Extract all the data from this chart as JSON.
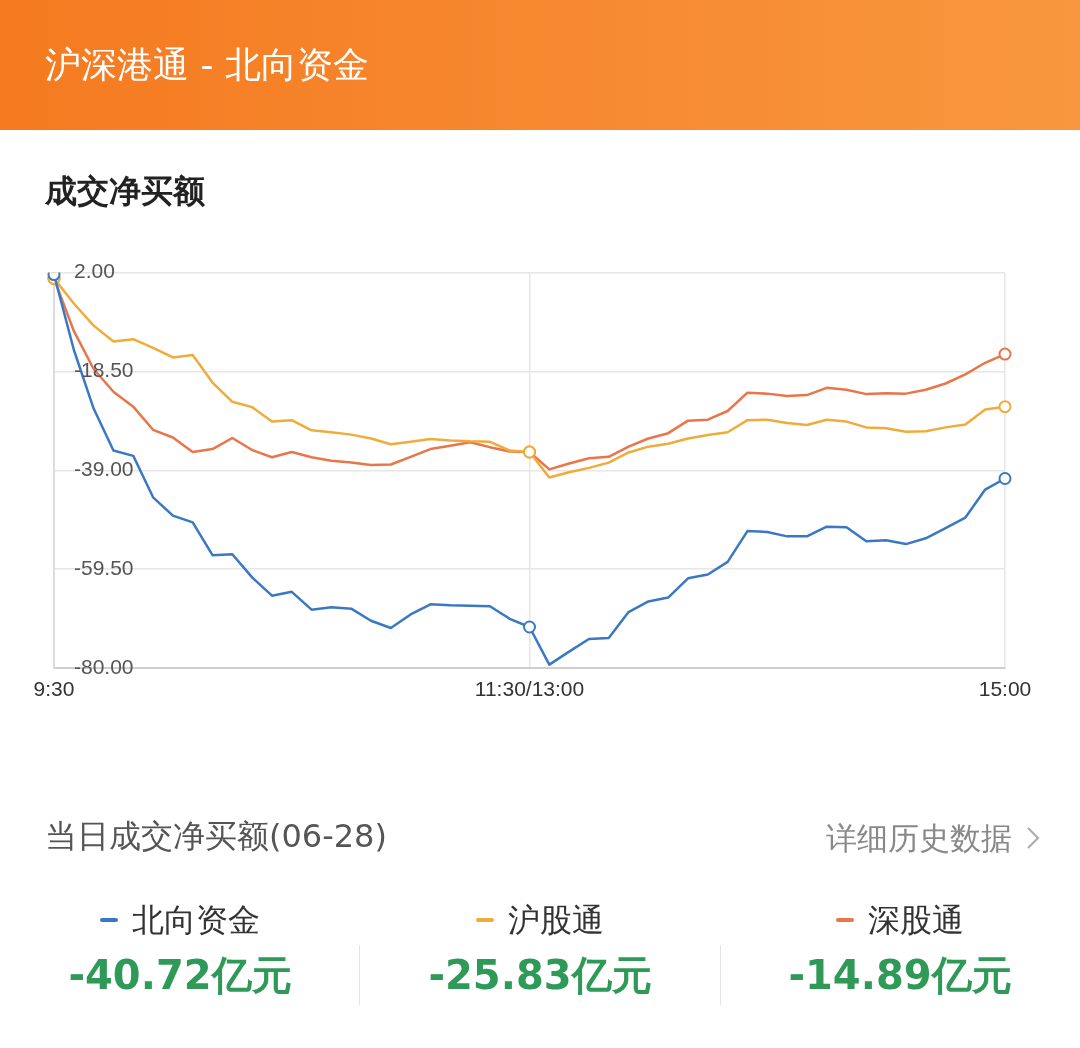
{
  "chart_data": {
    "type": "line",
    "title": "沪深港通 - 北向资金",
    "subtitle": "成交净买额",
    "annotations": [
      "当日成交净买额(06-28)",
      "详细历史数据",
      "-40.72亿元",
      "-25.83亿元",
      "-14.89亿元"
    ],
    "categories": [
      "9:30",
      null,
      null,
      null,
      null,
      null,
      null,
      null,
      null,
      null,
      null,
      null,
      null,
      null,
      null,
      null,
      null,
      null,
      null,
      null,
      null,
      null,
      null,
      null,
      "11:30/13:00",
      null,
      null,
      null,
      null,
      null,
      null,
      null,
      null,
      null,
      null,
      null,
      null,
      null,
      null,
      null,
      null,
      null,
      null,
      null,
      null,
      null,
      null,
      null,
      "15:00"
    ],
    "ylim": [
      -80,
      2
    ],
    "yticks": [
      {
        "value": 2,
        "label": "2.00"
      },
      {
        "value": -18.5,
        "label": "-18.50"
      },
      {
        "value": -39,
        "label": "-39.00"
      },
      {
        "value": -59.5,
        "label": "-59.50"
      },
      {
        "value": -80,
        "label": "-80.00"
      }
    ],
    "grid": true,
    "legend": "bottom",
    "line_style": "solid",
    "series": [
      {
        "name": "北向资金",
        "color": "#3b78c3",
        "values": [
          1.6,
          -14.0,
          -26.2,
          -34.9,
          -36.0,
          -44.6,
          -48.4,
          -49.8,
          -56.6,
          -56.4,
          -61.2,
          -65.0,
          -64.2,
          -67.9,
          -67.4,
          -67.7,
          -70.2,
          -71.7,
          -68.9,
          -66.8,
          -67.0,
          -67.1,
          -67.2,
          -69.8,
          -71.5,
          -79.3,
          -76.6,
          -74.0,
          -73.8,
          -68.4,
          -66.2,
          -65.4,
          -61.4,
          -60.6,
          -58.0,
          -51.6,
          -51.8,
          -52.7,
          -52.7,
          -50.7,
          -50.8,
          -53.7,
          -53.5,
          -54.3,
          -53.1,
          -51.0,
          -48.8,
          -43.0,
          -40.7
        ]
      },
      {
        "name": "沪股通",
        "color": "#f0ac3a",
        "values": [
          0.8,
          -4.4,
          -9.0,
          -12.3,
          -11.8,
          -13.6,
          -15.6,
          -15.1,
          -20.8,
          -24.8,
          -25.9,
          -28.9,
          -28.6,
          -30.7,
          -31.1,
          -31.6,
          -32.4,
          -33.6,
          -33.1,
          -32.5,
          -32.8,
          -33.0,
          -33.1,
          -34.9,
          -35.2,
          -40.5,
          -39.4,
          -38.5,
          -37.4,
          -35.3,
          -34.1,
          -33.5,
          -32.4,
          -31.7,
          -31.1,
          -28.6,
          -28.5,
          -29.2,
          -29.6,
          -28.5,
          -28.9,
          -30.1,
          -30.3,
          -31.0,
          -30.9,
          -30.1,
          -29.5,
          -26.4,
          -25.8
        ]
      },
      {
        "name": "深股通",
        "color": "#e8764a",
        "values": [
          0.8,
          -10.1,
          -18.0,
          -22.7,
          -25.8,
          -30.6,
          -32.2,
          -35.2,
          -34.6,
          -32.3,
          -34.8,
          -36.3,
          -35.2,
          -36.3,
          -37.0,
          -37.4,
          -37.9,
          -37.8,
          -36.2,
          -34.6,
          -33.9,
          -33.2,
          -34.2,
          -35.1,
          -35.2,
          -38.8,
          -37.6,
          -36.5,
          -36.2,
          -34.1,
          -32.4,
          -31.3,
          -28.7,
          -28.5,
          -26.7,
          -22.9,
          -23.1,
          -23.6,
          -23.4,
          -21.9,
          -22.3,
          -23.2,
          -23.0,
          -23.1,
          -22.3,
          -21.0,
          -19.1,
          -16.7,
          -14.9
        ]
      }
    ]
  }
}
